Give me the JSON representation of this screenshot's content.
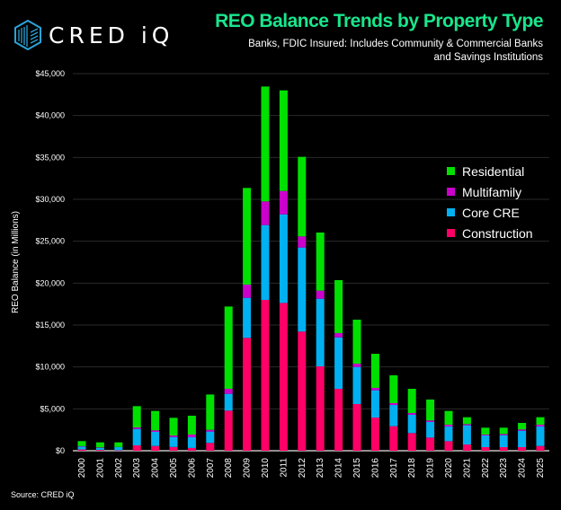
{
  "logo": {
    "text": "CRED iQ"
  },
  "header": {
    "title": "REO Balance Trends by Property Type",
    "subtitle_line1": "Banks, FDIC Insured:  Includes Community & Commercial Banks",
    "subtitle_line2": "and Savings Institutions"
  },
  "source": "Source: CRED iQ",
  "chart_data": {
    "type": "bar",
    "stacked": true,
    "title": "REO Balance Trends by Property Type",
    "xlabel": "",
    "ylabel": "REO Balance (in Millions)",
    "ylim": [
      0,
      45000
    ],
    "yticks": [
      "$0",
      "$5,000",
      "$10,000",
      "$15,000",
      "$20,000",
      "$25,000",
      "$30,000",
      "$35,000",
      "$40,000",
      "$45,000"
    ],
    "grid": true,
    "legend_position": "right",
    "categories": [
      "2000",
      "2001",
      "2002",
      "2003",
      "2004",
      "2005",
      "2006",
      "2007",
      "2008",
      "2009",
      "2010",
      "2011",
      "2012",
      "2013",
      "2014",
      "2015",
      "2016",
      "2017",
      "2018",
      "2019",
      "2020",
      "2021",
      "2022",
      "2023",
      "2024",
      "2025"
    ],
    "series": [
      {
        "name": "Construction",
        "color": "#ff0066",
        "values": [
          150,
          100,
          50,
          650,
          570,
          450,
          330,
          930,
          4790,
          13470,
          18000,
          17640,
          14220,
          10070,
          7390,
          5570,
          3960,
          2930,
          2110,
          1570,
          1140,
          750,
          430,
          430,
          430,
          570
        ]
      },
      {
        "name": "Core CRE",
        "color": "#00b0f0",
        "values": [
          350,
          250,
          400,
          1950,
          1680,
          1190,
          1280,
          1360,
          2000,
          4780,
          8930,
          10570,
          10030,
          8070,
          6140,
          4430,
          3250,
          2530,
          2180,
          1860,
          1750,
          2290,
          1390,
          1430,
          1960,
          2320
        ]
      },
      {
        "name": "Multifamily",
        "color": "#cc00cc",
        "values": [
          50,
          50,
          0,
          180,
          180,
          180,
          320,
          210,
          600,
          1570,
          2820,
          2790,
          1330,
          970,
          510,
          390,
          290,
          220,
          210,
          180,
          220,
          140,
          110,
          140,
          150,
          220
        ]
      },
      {
        "name": "Residential",
        "color": "#00e000",
        "values": [
          600,
          600,
          550,
          2540,
          2320,
          2110,
          2250,
          4210,
          9820,
          11540,
          13710,
          12000,
          9490,
          6930,
          6320,
          5250,
          4070,
          3320,
          2890,
          2500,
          1640,
          820,
          820,
          750,
          780,
          890
        ]
      }
    ],
    "legend_order": [
      "Residential",
      "Multifamily",
      "Core CRE",
      "Construction"
    ]
  }
}
